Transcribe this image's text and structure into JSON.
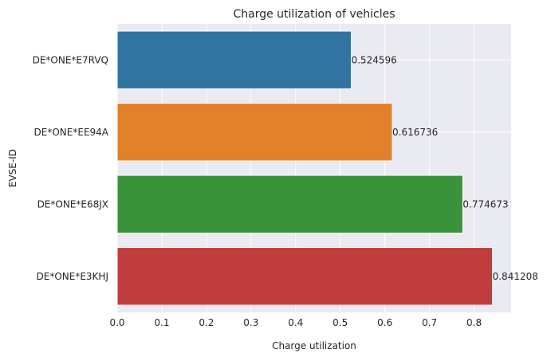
{
  "chart_data": {
    "type": "bar",
    "orientation": "horizontal",
    "title": "Charge utilization of vehicles",
    "xlabel": "Charge utilization",
    "ylabel": "EVSE-ID",
    "xlim": [
      0,
      0.883
    ],
    "xticks": [
      "0.0",
      "0.1",
      "0.2",
      "0.3",
      "0.4",
      "0.5",
      "0.6",
      "0.7",
      "0.8"
    ],
    "grid": true,
    "categories": [
      "DE*ONE*E7RVQ",
      "DE*ONE*EE94A",
      "DE*ONE*E68JX",
      "DE*ONE*E3KHJ"
    ],
    "values": [
      0.524596,
      0.616736,
      0.774673,
      0.841208
    ],
    "value_labels": [
      "0.524596",
      "0.616736",
      "0.774673",
      "0.841208"
    ],
    "colors": [
      "#3274a1",
      "#e1812c",
      "#3a923a",
      "#c03d3e"
    ]
  }
}
